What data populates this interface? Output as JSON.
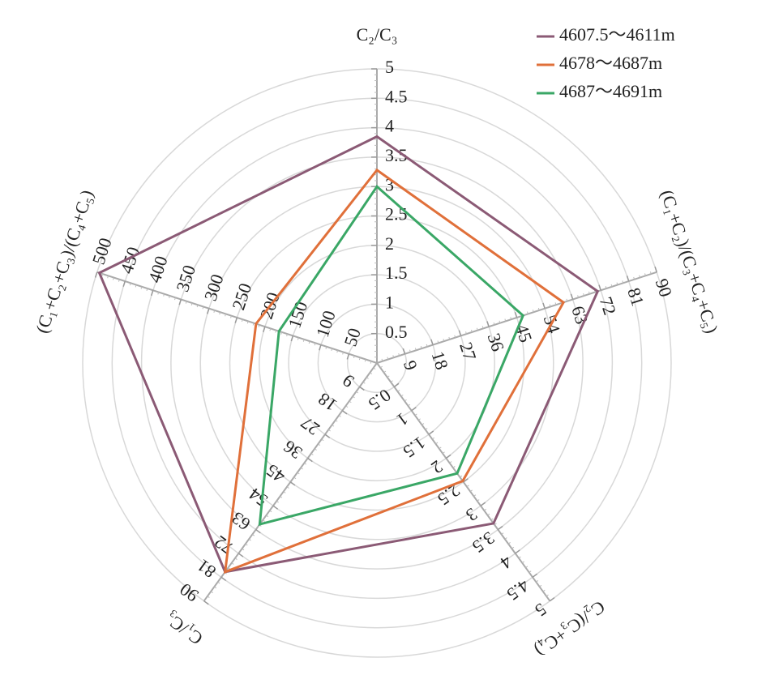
{
  "chart_data": {
    "type": "radar",
    "axes": [
      {
        "name": "C₂/C₃",
        "lim": [
          0,
          5
        ],
        "ticks": [
          0.5,
          1,
          1.5,
          2,
          2.5,
          3,
          3.5,
          4,
          4.5,
          5
        ]
      },
      {
        "name": "(C₁+C₂)/(C₃+C₄+C₅)",
        "lim": [
          0,
          90
        ],
        "ticks": [
          9,
          18,
          27,
          36,
          45,
          54,
          63,
          72,
          81,
          90
        ]
      },
      {
        "name": "C₂/(C₃+C₄)",
        "lim": [
          0,
          5
        ],
        "ticks": [
          0.5,
          1,
          1.5,
          2,
          2.5,
          3,
          3.5,
          4,
          4.5,
          5
        ]
      },
      {
        "name": "C₁/C₃",
        "lim": [
          0,
          90
        ],
        "ticks": [
          9,
          18,
          27,
          36,
          45,
          54,
          63,
          72,
          81,
          90
        ]
      },
      {
        "name": "(C₁+C₂+C₃)/(C₄+C₅)",
        "lim": [
          0,
          500
        ],
        "ticks": [
          50,
          100,
          150,
          200,
          250,
          300,
          350,
          400,
          450,
          500
        ]
      }
    ],
    "series": [
      {
        "name": "4607.5～4611m",
        "color": "#8b5a75",
        "values": [
          3.85,
          71,
          3.37,
          79,
          496
        ]
      },
      {
        "name": "4678～4687m",
        "color": "#e0703a",
        "values": [
          3.28,
          60,
          2.48,
          79,
          216
        ]
      },
      {
        "name": "4687～4691m",
        "color": "#3aa766",
        "values": [
          3.0,
          47,
          2.32,
          61,
          175
        ]
      }
    ],
    "grid": true,
    "legend": "upper right"
  }
}
